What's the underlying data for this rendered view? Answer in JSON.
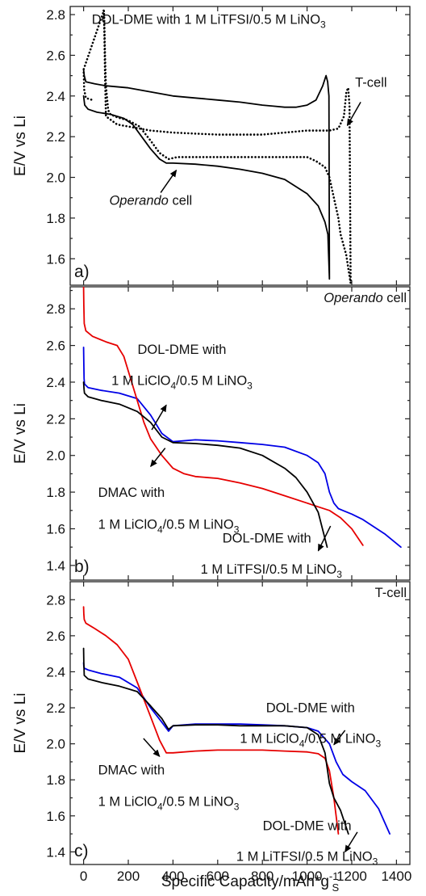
{
  "figure": {
    "xlabel": "Specific Capacity/mAh*g",
    "xlabel_sup": "-1",
    "xlabel_sub": "S"
  },
  "chart_data": [
    {
      "id": "a",
      "type": "line",
      "panel_label": "a)",
      "ylabel": "E/V vs Li",
      "xlim": [
        -60,
        1460
      ],
      "ylim": [
        1.47,
        2.84
      ],
      "yticks": [
        "1.6",
        "1.8",
        "2.0",
        "2.2",
        "2.4",
        "2.6",
        "2.8"
      ],
      "ytick_values": [
        1.6,
        1.8,
        2.0,
        2.2,
        2.4,
        2.6,
        2.8
      ],
      "xticks": [],
      "corner_label": "",
      "annotations": [
        {
          "id": "title",
          "text": "DOL-DME with 1 M LiTFSI/0.5 M LiNO",
          "sub": "3",
          "x": 560,
          "y": 2.755,
          "anchor": "middle"
        },
        {
          "id": "tcell",
          "text": "T-cell",
          "x": 1215,
          "y": 2.445,
          "anchor": "start"
        },
        {
          "id": "operando",
          "text": "Operando",
          "italic": true,
          "tail": " cell",
          "x": 115,
          "y": 1.865,
          "anchor": "start"
        }
      ],
      "arrows": [
        {
          "x1": 1240,
          "y1": 2.37,
          "x2": 1180,
          "y2": 2.255
        },
        {
          "x1": 345,
          "y1": 1.925,
          "x2": 415,
          "y2": 2.035
        }
      ],
      "series": [
        {
          "color": "#000000",
          "dash": false,
          "x": [
            0,
            5,
            20,
            60,
            120,
            180,
            220,
            260,
            300,
            340,
            370,
            400,
            500,
            600,
            700,
            800,
            900,
            1000,
            1050,
            1080,
            1093,
            1100,
            1098,
            1092,
            1085,
            1070,
            1040,
            1000,
            950,
            900,
            850,
            800,
            700,
            600,
            500,
            400,
            300,
            200,
            100,
            50,
            10,
            3,
            0
          ],
          "y": [
            2.4,
            2.355,
            2.335,
            2.32,
            2.31,
            2.29,
            2.26,
            2.2,
            2.14,
            2.09,
            2.07,
            2.07,
            2.065,
            2.055,
            2.04,
            2.02,
            1.99,
            1.92,
            1.86,
            1.78,
            1.72,
            1.5,
            2.4,
            2.47,
            2.5,
            2.45,
            2.38,
            2.355,
            2.345,
            2.345,
            2.35,
            2.355,
            2.37,
            2.38,
            2.39,
            2.4,
            2.42,
            2.44,
            2.45,
            2.46,
            2.47,
            2.5,
            2.53
          ]
        },
        {
          "color": "#000000",
          "dash": true,
          "x": [
            90,
            92,
            96,
            100,
            110,
            120,
            150,
            200,
            250,
            300,
            340,
            380,
            420,
            500,
            600,
            700,
            800,
            900,
            1000,
            1040,
            1080,
            1100,
            1120,
            1140,
            1150,
            1160,
            1175,
            1185,
            1195,
            1190,
            1184,
            1176,
            1165,
            1140,
            1100,
            1000,
            900,
            800,
            700,
            600,
            500,
            400,
            300,
            200,
            150,
            100,
            96,
            93,
            91,
            0,
            3,
            10,
            40
          ],
          "y": [
            2.82,
            2.8,
            2.6,
            2.45,
            2.33,
            2.31,
            2.295,
            2.28,
            2.25,
            2.18,
            2.12,
            2.09,
            2.1,
            2.1,
            2.1,
            2.1,
            2.1,
            2.1,
            2.1,
            2.08,
            2.05,
            2.0,
            1.9,
            1.8,
            1.72,
            1.68,
            1.62,
            1.55,
            1.48,
            2.35,
            2.44,
            2.42,
            2.3,
            2.24,
            2.23,
            2.23,
            2.22,
            2.21,
            2.21,
            2.21,
            2.215,
            2.22,
            2.23,
            2.25,
            2.26,
            2.3,
            2.5,
            2.7,
            2.82,
            2.53,
            2.43,
            2.39,
            2.38
          ]
        }
      ]
    },
    {
      "id": "b",
      "type": "line",
      "panel_label": "b)",
      "ylabel": "E/V vs Li",
      "xlim": [
        -60,
        1460
      ],
      "ylim": [
        1.32,
        2.92
      ],
      "yticks": [
        "1.4",
        "1.6",
        "1.8",
        "2.0",
        "2.2",
        "2.4",
        "2.6",
        "2.8"
      ],
      "ytick_values": [
        1.4,
        1.6,
        1.8,
        2.0,
        2.2,
        2.4,
        2.6,
        2.8
      ],
      "xticks": [],
      "corner_label": {
        "text": "Operando",
        "italic": true,
        "tail": " cell"
      },
      "annotations": [
        {
          "id": "licl-dol",
          "text": "DOL-DME with",
          "x": 440,
          "y": 2.555,
          "anchor": "middle"
        },
        {
          "id": "licl-dol2",
          "text": "1 M LiClO",
          "sub": "4",
          "tail": "/0.5 M LiNO",
          "sub2": "3",
          "x": 440,
          "y": 2.385,
          "anchor": "middle"
        },
        {
          "id": "dmac",
          "text": "DMAC with",
          "x": 65,
          "y": 1.775,
          "anchor": "start"
        },
        {
          "id": "dmac2",
          "text": "1 M LiClO",
          "sub": "4",
          "tail": "/0.5 M LiNO",
          "sub2": "3",
          "x": 65,
          "y": 1.6,
          "anchor": "start"
        },
        {
          "id": "tfsi",
          "text": "DOL-DME with",
          "x": 820,
          "y": 1.525,
          "anchor": "middle"
        },
        {
          "id": "tfsi2",
          "text": "1 M LiTFSI/0.5 M LiNO",
          "sub": "3",
          "x": 840,
          "y": 1.355,
          "anchor": "middle"
        }
      ],
      "arrows": [
        {
          "x1": 305,
          "y1": 2.14,
          "x2": 370,
          "y2": 2.275
        },
        {
          "x1": 365,
          "y1": 2.04,
          "x2": 300,
          "y2": 1.94
        },
        {
          "x1": 1105,
          "y1": 1.615,
          "x2": 1050,
          "y2": 1.48
        }
      ],
      "series": [
        {
          "name": "DOL-DME with 1 M LiClO4/0.5 M LiNO3",
          "color": "#0000e6",
          "dash": false,
          "x": [
            0,
            1,
            2,
            4,
            20,
            80,
            160,
            240,
            300,
            350,
            400,
            500,
            600,
            700,
            800,
            900,
            1000,
            1050,
            1080,
            1100,
            1120,
            1140,
            1160,
            1200,
            1250,
            1300,
            1350,
            1420
          ],
          "y": [
            2.59,
            2.5,
            2.42,
            2.39,
            2.37,
            2.355,
            2.34,
            2.31,
            2.22,
            2.12,
            2.075,
            2.085,
            2.08,
            2.07,
            2.06,
            2.045,
            2.0,
            1.96,
            1.9,
            1.8,
            1.74,
            1.71,
            1.7,
            1.68,
            1.65,
            1.61,
            1.57,
            1.5
          ]
        },
        {
          "name": "DMAC with 1 M LiClO4/0.5 M LiNO3",
          "color": "#e60000",
          "dash": false,
          "x": [
            0,
            1,
            3,
            10,
            40,
            100,
            150,
            180,
            210,
            240,
            270,
            300,
            350,
            400,
            450,
            500,
            600,
            700,
            800,
            900,
            1000,
            1050,
            1100,
            1150,
            1200,
            1250
          ],
          "y": [
            2.92,
            2.82,
            2.72,
            2.68,
            2.65,
            2.62,
            2.6,
            2.54,
            2.42,
            2.3,
            2.18,
            2.09,
            2.0,
            1.93,
            1.9,
            1.885,
            1.875,
            1.85,
            1.82,
            1.78,
            1.74,
            1.72,
            1.7,
            1.66,
            1.6,
            1.51
          ]
        },
        {
          "name": "DOL-DME with 1 M LiTFSI/0.5 M LiNO3",
          "color": "#000000",
          "dash": false,
          "x": [
            0,
            2,
            4,
            20,
            80,
            160,
            240,
            300,
            350,
            400,
            500,
            600,
            700,
            800,
            900,
            950,
            1000,
            1050,
            1090
          ],
          "y": [
            2.4,
            2.36,
            2.34,
            2.32,
            2.3,
            2.28,
            2.24,
            2.18,
            2.1,
            2.07,
            2.065,
            2.055,
            2.04,
            2.0,
            1.93,
            1.88,
            1.8,
            1.69,
            1.5
          ]
        }
      ]
    },
    {
      "id": "c",
      "type": "line",
      "panel_label": "c)",
      "ylabel": "E/V vs Li",
      "xlim": [
        -60,
        1460
      ],
      "ylim": [
        1.33,
        2.9
      ],
      "yticks": [
        "1.4",
        "1.6",
        "1.8",
        "2.0",
        "2.2",
        "2.4",
        "2.6",
        "2.8"
      ],
      "ytick_values": [
        1.4,
        1.6,
        1.8,
        2.0,
        2.2,
        2.4,
        2.6,
        2.8
      ],
      "xticks": [
        "0",
        "200",
        "400",
        "600",
        "800",
        "1000",
        "1200",
        "1400"
      ],
      "xtick_values": [
        0,
        200,
        400,
        600,
        800,
        1000,
        1200,
        1400
      ],
      "corner_label": {
        "text": "T-cell",
        "italic": false,
        "tail": ""
      },
      "annotations": [
        {
          "id": "licl-dol",
          "text": "DOL-DME with",
          "x": 1015,
          "y": 2.175,
          "anchor": "middle"
        },
        {
          "id": "licl-dol2",
          "text": "1 M LiClO",
          "sub": "4",
          "tail": "/0.5 M LiNO",
          "sub2": "3",
          "x": 1015,
          "y": 2.005,
          "anchor": "middle"
        },
        {
          "id": "dmac",
          "text": "DMAC with",
          "x": 65,
          "y": 1.83,
          "anchor": "start"
        },
        {
          "id": "dmac2",
          "text": "1 M LiClO",
          "sub": "4",
          "tail": "/0.5 M LiNO",
          "sub2": "3",
          "x": 65,
          "y": 1.655,
          "anchor": "start"
        },
        {
          "id": "tfsi",
          "text": "DOL-DME with",
          "x": 1000,
          "y": 1.52,
          "anchor": "middle"
        },
        {
          "id": "tfsi2",
          "text": "1 M LiTFSI/0.5 M LiNO",
          "sub": "3",
          "x": 1000,
          "y": 1.35,
          "anchor": "middle"
        }
      ],
      "arrows": [
        {
          "x1": 268,
          "y1": 2.03,
          "x2": 340,
          "y2": 1.93
        },
        {
          "x1": 1170,
          "y1": 2.075,
          "x2": 1120,
          "y2": 1.995
        },
        {
          "x1": 1225,
          "y1": 1.51,
          "x2": 1170,
          "y2": 1.4
        }
      ],
      "series": [
        {
          "name": "DOL-DME with 1 M LiClO4/0.5 M LiNO3",
          "color": "#0000e6",
          "dash": false,
          "x": [
            0,
            1,
            3,
            20,
            80,
            160,
            240,
            300,
            350,
            380,
            400,
            500,
            600,
            700,
            800,
            900,
            1000,
            1050,
            1100,
            1130,
            1160,
            1200,
            1260,
            1320,
            1370
          ],
          "y": [
            2.45,
            2.43,
            2.42,
            2.41,
            2.39,
            2.37,
            2.31,
            2.2,
            2.12,
            2.07,
            2.1,
            2.11,
            2.11,
            2.11,
            2.105,
            2.1,
            2.09,
            2.07,
            2.0,
            1.9,
            1.83,
            1.79,
            1.74,
            1.64,
            1.5
          ]
        },
        {
          "name": "DMAC with 1 M LiClO4/0.5 M LiNO3",
          "color": "#e60000",
          "dash": false,
          "x": [
            0,
            1,
            3,
            10,
            50,
            100,
            150,
            200,
            250,
            300,
            340,
            370,
            400,
            500,
            600,
            700,
            800,
            900,
            1000,
            1050,
            1080,
            1100,
            1120,
            1140
          ],
          "y": [
            2.76,
            2.72,
            2.69,
            2.67,
            2.64,
            2.6,
            2.55,
            2.47,
            2.31,
            2.15,
            2.02,
            1.95,
            1.95,
            1.96,
            1.965,
            1.965,
            1.965,
            1.96,
            1.955,
            1.945,
            1.92,
            1.85,
            1.7,
            1.5
          ]
        },
        {
          "name": "DOL-DME with 1 M LiTFSI/0.5 M LiNO3",
          "color": "#000000",
          "dash": false,
          "x": [
            0,
            1,
            3,
            20,
            80,
            160,
            240,
            300,
            350,
            380,
            400,
            500,
            600,
            700,
            800,
            900,
            1000,
            1050,
            1080,
            1100,
            1120,
            1150,
            1185
          ],
          "y": [
            2.53,
            2.45,
            2.38,
            2.36,
            2.34,
            2.32,
            2.29,
            2.21,
            2.14,
            2.08,
            2.1,
            2.105,
            2.105,
            2.1,
            2.1,
            2.1,
            2.09,
            2.05,
            1.95,
            1.78,
            1.7,
            1.63,
            1.5
          ]
        }
      ]
    }
  ]
}
